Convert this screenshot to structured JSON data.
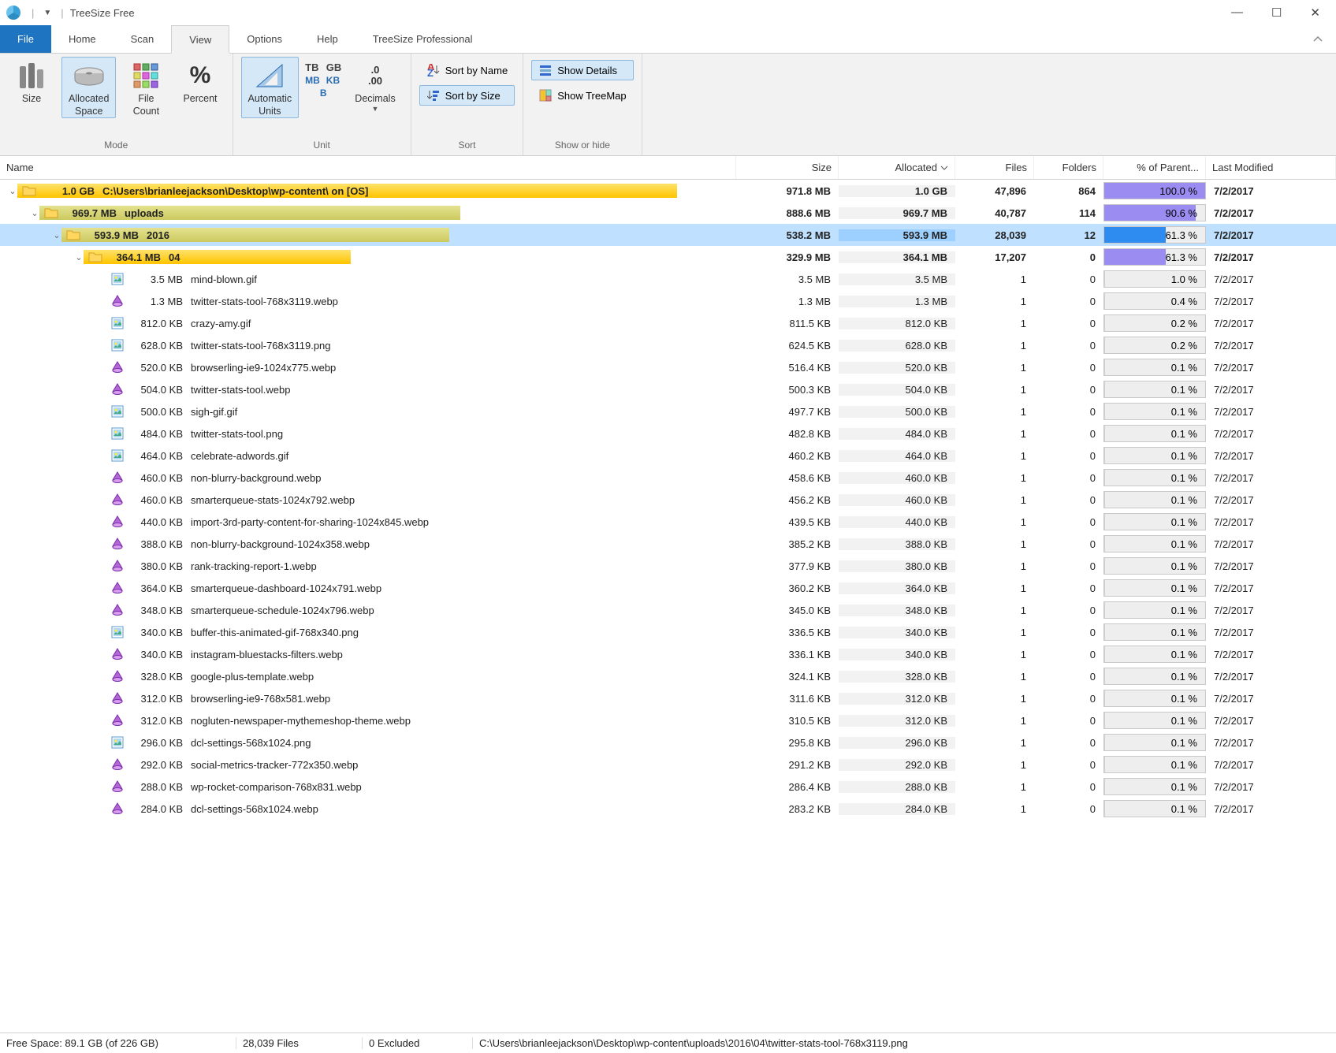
{
  "window": {
    "title": "TreeSize Free"
  },
  "menu": {
    "file": "File",
    "home": "Home",
    "scan": "Scan",
    "view": "View",
    "options": "Options",
    "help": "Help",
    "pro": "TreeSize Professional"
  },
  "ribbon": {
    "mode": {
      "label": "Mode",
      "size": "Size",
      "alloc": "Allocated\nSpace",
      "count": "File\nCount",
      "pct": "Percent"
    },
    "unit": {
      "label": "Unit",
      "auto": "Automatic\nUnits",
      "tb": "TB",
      "gb": "GB",
      "mb": "MB",
      "kb": "KB",
      "b": "B",
      "dec": "Decimals"
    },
    "sort": {
      "label": "Sort",
      "byname": "Sort by Name",
      "bysize": "Sort by Size"
    },
    "show": {
      "label": "Show or hide",
      "details": "Show Details",
      "treemap": "Show TreeMap"
    }
  },
  "columns": {
    "name": "Name",
    "size": "Size",
    "alloc": "Allocated",
    "files": "Files",
    "folders": "Folders",
    "pct": "% of Parent...",
    "mod": "Last Modified"
  },
  "colors": {
    "pct_purple": "#9a8cf0",
    "pct_blue": "#2e8cf0",
    "pct_gray": "#d0d0d0",
    "row_sel": "#bfe0ff"
  },
  "tree": [
    {
      "depth": 0,
      "exp": "v",
      "icon": "folder",
      "bold": true,
      "barColor": "yellow",
      "barPct": 100,
      "sz": "1.0 GB",
      "name": "C:\\Users\\brianleejackson\\Desktop\\wp-content\\  on  [OS]",
      "size": "971.8 MB",
      "alloc": "1.0 GB",
      "files": "47,896",
      "folders": "864",
      "pct": "100.0 %",
      "pctFill": 100,
      "pctColor": "#9a8cf0",
      "mod": "7/2/2017"
    },
    {
      "depth": 1,
      "exp": "v",
      "icon": "folder",
      "bold": true,
      "barColor": "olive",
      "barPct": 66,
      "sz": "969.7 MB",
      "name": "uploads",
      "size": "888.6 MB",
      "alloc": "969.7 MB",
      "files": "40,787",
      "folders": "114",
      "pct": "90.6 %",
      "pctFill": 90.6,
      "pctColor": "#9a8cf0",
      "mod": "7/2/2017"
    },
    {
      "depth": 2,
      "exp": "v",
      "icon": "folder",
      "bold": true,
      "sel": true,
      "barColor": "olive",
      "barPct": 63,
      "sz": "593.9 MB",
      "name": "2016",
      "size": "538.2 MB",
      "alloc": "593.9 MB",
      "files": "28,039",
      "folders": "12",
      "pct": "61.3 %",
      "pctFill": 61.3,
      "pctColor": "#2e8cf0",
      "mod": "7/2/2017"
    },
    {
      "depth": 3,
      "exp": "v",
      "icon": "folder",
      "bold": true,
      "barColor": "yellow",
      "barPct": 45,
      "sz": "364.1 MB",
      "name": "04",
      "size": "329.9 MB",
      "alloc": "364.1 MB",
      "files": "17,207",
      "folders": "0",
      "pct": "61.3 %",
      "pctFill": 61.3,
      "pctColor": "#9a8cf0",
      "mod": "7/2/2017"
    },
    {
      "depth": 4,
      "icon": "img",
      "sz": "3.5 MB",
      "name": "mind-blown.gif",
      "size": "3.5 MB",
      "alloc": "3.5 MB",
      "files": "1",
      "folders": "0",
      "pct": "1.0 %",
      "pctFill": 1,
      "pctColor": "#d0d0d0",
      "mod": "7/2/2017"
    },
    {
      "depth": 4,
      "icon": "webp",
      "sz": "1.3 MB",
      "name": "twitter-stats-tool-768x3119.webp",
      "size": "1.3 MB",
      "alloc": "1.3 MB",
      "files": "1",
      "folders": "0",
      "pct": "0.4 %",
      "pctFill": 0.4,
      "pctColor": "#d0d0d0",
      "mod": "7/2/2017"
    },
    {
      "depth": 4,
      "icon": "img",
      "sz": "812.0 KB",
      "name": "crazy-amy.gif",
      "size": "811.5 KB",
      "alloc": "812.0 KB",
      "files": "1",
      "folders": "0",
      "pct": "0.2 %",
      "pctFill": 0.2,
      "pctColor": "#d0d0d0",
      "mod": "7/2/2017"
    },
    {
      "depth": 4,
      "icon": "img",
      "sz": "628.0 KB",
      "name": "twitter-stats-tool-768x3119.png",
      "size": "624.5 KB",
      "alloc": "628.0 KB",
      "files": "1",
      "folders": "0",
      "pct": "0.2 %",
      "pctFill": 0.2,
      "pctColor": "#d0d0d0",
      "mod": "7/2/2017"
    },
    {
      "depth": 4,
      "icon": "webp",
      "sz": "520.0 KB",
      "name": "browserling-ie9-1024x775.webp",
      "size": "516.4 KB",
      "alloc": "520.0 KB",
      "files": "1",
      "folders": "0",
      "pct": "0.1 %",
      "pctFill": 0.1,
      "pctColor": "#d0d0d0",
      "mod": "7/2/2017"
    },
    {
      "depth": 4,
      "icon": "webp",
      "sz": "504.0 KB",
      "name": "twitter-stats-tool.webp",
      "size": "500.3 KB",
      "alloc": "504.0 KB",
      "files": "1",
      "folders": "0",
      "pct": "0.1 %",
      "pctFill": 0.1,
      "pctColor": "#d0d0d0",
      "mod": "7/2/2017"
    },
    {
      "depth": 4,
      "icon": "img",
      "sz": "500.0 KB",
      "name": "sigh-gif.gif",
      "size": "497.7 KB",
      "alloc": "500.0 KB",
      "files": "1",
      "folders": "0",
      "pct": "0.1 %",
      "pctFill": 0.1,
      "pctColor": "#d0d0d0",
      "mod": "7/2/2017"
    },
    {
      "depth": 4,
      "icon": "img",
      "sz": "484.0 KB",
      "name": "twitter-stats-tool.png",
      "size": "482.8 KB",
      "alloc": "484.0 KB",
      "files": "1",
      "folders": "0",
      "pct": "0.1 %",
      "pctFill": 0.1,
      "pctColor": "#d0d0d0",
      "mod": "7/2/2017"
    },
    {
      "depth": 4,
      "icon": "img",
      "sz": "464.0 KB",
      "name": "celebrate-adwords.gif",
      "size": "460.2 KB",
      "alloc": "464.0 KB",
      "files": "1",
      "folders": "0",
      "pct": "0.1 %",
      "pctFill": 0.1,
      "pctColor": "#d0d0d0",
      "mod": "7/2/2017"
    },
    {
      "depth": 4,
      "icon": "webp",
      "sz": "460.0 KB",
      "name": "non-blurry-background.webp",
      "size": "458.6 KB",
      "alloc": "460.0 KB",
      "files": "1",
      "folders": "0",
      "pct": "0.1 %",
      "pctFill": 0.1,
      "pctColor": "#d0d0d0",
      "mod": "7/2/2017"
    },
    {
      "depth": 4,
      "icon": "webp",
      "sz": "460.0 KB",
      "name": "smarterqueue-stats-1024x792.webp",
      "size": "456.2 KB",
      "alloc": "460.0 KB",
      "files": "1",
      "folders": "0",
      "pct": "0.1 %",
      "pctFill": 0.1,
      "pctColor": "#d0d0d0",
      "mod": "7/2/2017"
    },
    {
      "depth": 4,
      "icon": "webp",
      "sz": "440.0 KB",
      "name": "import-3rd-party-content-for-sharing-1024x845.webp",
      "size": "439.5 KB",
      "alloc": "440.0 KB",
      "files": "1",
      "folders": "0",
      "pct": "0.1 %",
      "pctFill": 0.1,
      "pctColor": "#d0d0d0",
      "mod": "7/2/2017"
    },
    {
      "depth": 4,
      "icon": "webp",
      "sz": "388.0 KB",
      "name": "non-blurry-background-1024x358.webp",
      "size": "385.2 KB",
      "alloc": "388.0 KB",
      "files": "1",
      "folders": "0",
      "pct": "0.1 %",
      "pctFill": 0.1,
      "pctColor": "#d0d0d0",
      "mod": "7/2/2017"
    },
    {
      "depth": 4,
      "icon": "webp",
      "sz": "380.0 KB",
      "name": "rank-tracking-report-1.webp",
      "size": "377.9 KB",
      "alloc": "380.0 KB",
      "files": "1",
      "folders": "0",
      "pct": "0.1 %",
      "pctFill": 0.1,
      "pctColor": "#d0d0d0",
      "mod": "7/2/2017"
    },
    {
      "depth": 4,
      "icon": "webp",
      "sz": "364.0 KB",
      "name": "smarterqueue-dashboard-1024x791.webp",
      "size": "360.2 KB",
      "alloc": "364.0 KB",
      "files": "1",
      "folders": "0",
      "pct": "0.1 %",
      "pctFill": 0.1,
      "pctColor": "#d0d0d0",
      "mod": "7/2/2017"
    },
    {
      "depth": 4,
      "icon": "webp",
      "sz": "348.0 KB",
      "name": "smarterqueue-schedule-1024x796.webp",
      "size": "345.0 KB",
      "alloc": "348.0 KB",
      "files": "1",
      "folders": "0",
      "pct": "0.1 %",
      "pctFill": 0.1,
      "pctColor": "#d0d0d0",
      "mod": "7/2/2017"
    },
    {
      "depth": 4,
      "icon": "img",
      "sz": "340.0 KB",
      "name": "buffer-this-animated-gif-768x340.png",
      "size": "336.5 KB",
      "alloc": "340.0 KB",
      "files": "1",
      "folders": "0",
      "pct": "0.1 %",
      "pctFill": 0.1,
      "pctColor": "#d0d0d0",
      "mod": "7/2/2017"
    },
    {
      "depth": 4,
      "icon": "webp",
      "sz": "340.0 KB",
      "name": "instagram-bluestacks-filters.webp",
      "size": "336.1 KB",
      "alloc": "340.0 KB",
      "files": "1",
      "folders": "0",
      "pct": "0.1 %",
      "pctFill": 0.1,
      "pctColor": "#d0d0d0",
      "mod": "7/2/2017"
    },
    {
      "depth": 4,
      "icon": "webp",
      "sz": "328.0 KB",
      "name": "google-plus-template.webp",
      "size": "324.1 KB",
      "alloc": "328.0 KB",
      "files": "1",
      "folders": "0",
      "pct": "0.1 %",
      "pctFill": 0.1,
      "pctColor": "#d0d0d0",
      "mod": "7/2/2017"
    },
    {
      "depth": 4,
      "icon": "webp",
      "sz": "312.0 KB",
      "name": "browserling-ie9-768x581.webp",
      "size": "311.6 KB",
      "alloc": "312.0 KB",
      "files": "1",
      "folders": "0",
      "pct": "0.1 %",
      "pctFill": 0.1,
      "pctColor": "#d0d0d0",
      "mod": "7/2/2017"
    },
    {
      "depth": 4,
      "icon": "webp",
      "sz": "312.0 KB",
      "name": "nogluten-newspaper-mythemeshop-theme.webp",
      "size": "310.5 KB",
      "alloc": "312.0 KB",
      "files": "1",
      "folders": "0",
      "pct": "0.1 %",
      "pctFill": 0.1,
      "pctColor": "#d0d0d0",
      "mod": "7/2/2017"
    },
    {
      "depth": 4,
      "icon": "img",
      "sz": "296.0 KB",
      "name": "dcl-settings-568x1024.png",
      "size": "295.8 KB",
      "alloc": "296.0 KB",
      "files": "1",
      "folders": "0",
      "pct": "0.1 %",
      "pctFill": 0.1,
      "pctColor": "#d0d0d0",
      "mod": "7/2/2017"
    },
    {
      "depth": 4,
      "icon": "webp",
      "sz": "292.0 KB",
      "name": "social-metrics-tracker-772x350.webp",
      "size": "291.2 KB",
      "alloc": "292.0 KB",
      "files": "1",
      "folders": "0",
      "pct": "0.1 %",
      "pctFill": 0.1,
      "pctColor": "#d0d0d0",
      "mod": "7/2/2017"
    },
    {
      "depth": 4,
      "icon": "webp",
      "sz": "288.0 KB",
      "name": "wp-rocket-comparison-768x831.webp",
      "size": "286.4 KB",
      "alloc": "288.0 KB",
      "files": "1",
      "folders": "0",
      "pct": "0.1 %",
      "pctFill": 0.1,
      "pctColor": "#d0d0d0",
      "mod": "7/2/2017"
    },
    {
      "depth": 4,
      "icon": "webp",
      "sz": "284.0 KB",
      "name": "dcl-settings-568x1024.webp",
      "size": "283.2 KB",
      "alloc": "284.0 KB",
      "files": "1",
      "folders": "0",
      "pct": "0.1 %",
      "pctFill": 0.1,
      "pctColor": "#d0d0d0",
      "mod": "7/2/2017"
    }
  ],
  "status": {
    "free": "Free Space: 89.1 GB  (of 226 GB)",
    "files": "28,039  Files",
    "excl": "0 Excluded",
    "path": "C:\\Users\\brianleejackson\\Desktop\\wp-content\\uploads\\2016\\04\\twitter-stats-tool-768x3119.png"
  }
}
